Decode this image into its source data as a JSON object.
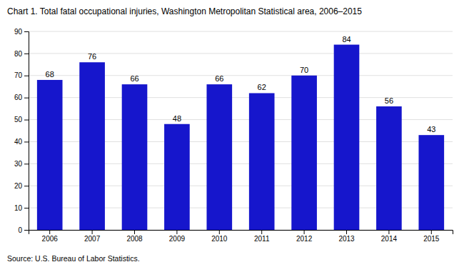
{
  "chart_data": {
    "type": "bar",
    "title": "Chart 1. Total fatal occupational injuries, Washington Metropolitan Statistical area, 2006–2015",
    "categories": [
      "2006",
      "2007",
      "2008",
      "2009",
      "2010",
      "2011",
      "2012",
      "2013",
      "2014",
      "2015"
    ],
    "values": [
      68,
      76,
      66,
      48,
      66,
      62,
      70,
      84,
      56,
      43
    ],
    "color": "#1616cc",
    "ylim": [
      0,
      90
    ],
    "yticks": [
      0,
      10,
      20,
      30,
      40,
      50,
      60,
      70,
      80,
      90
    ],
    "grid": true,
    "data_labels": true,
    "source": "Source: U.S. Bureau of Labor Statistics."
  }
}
